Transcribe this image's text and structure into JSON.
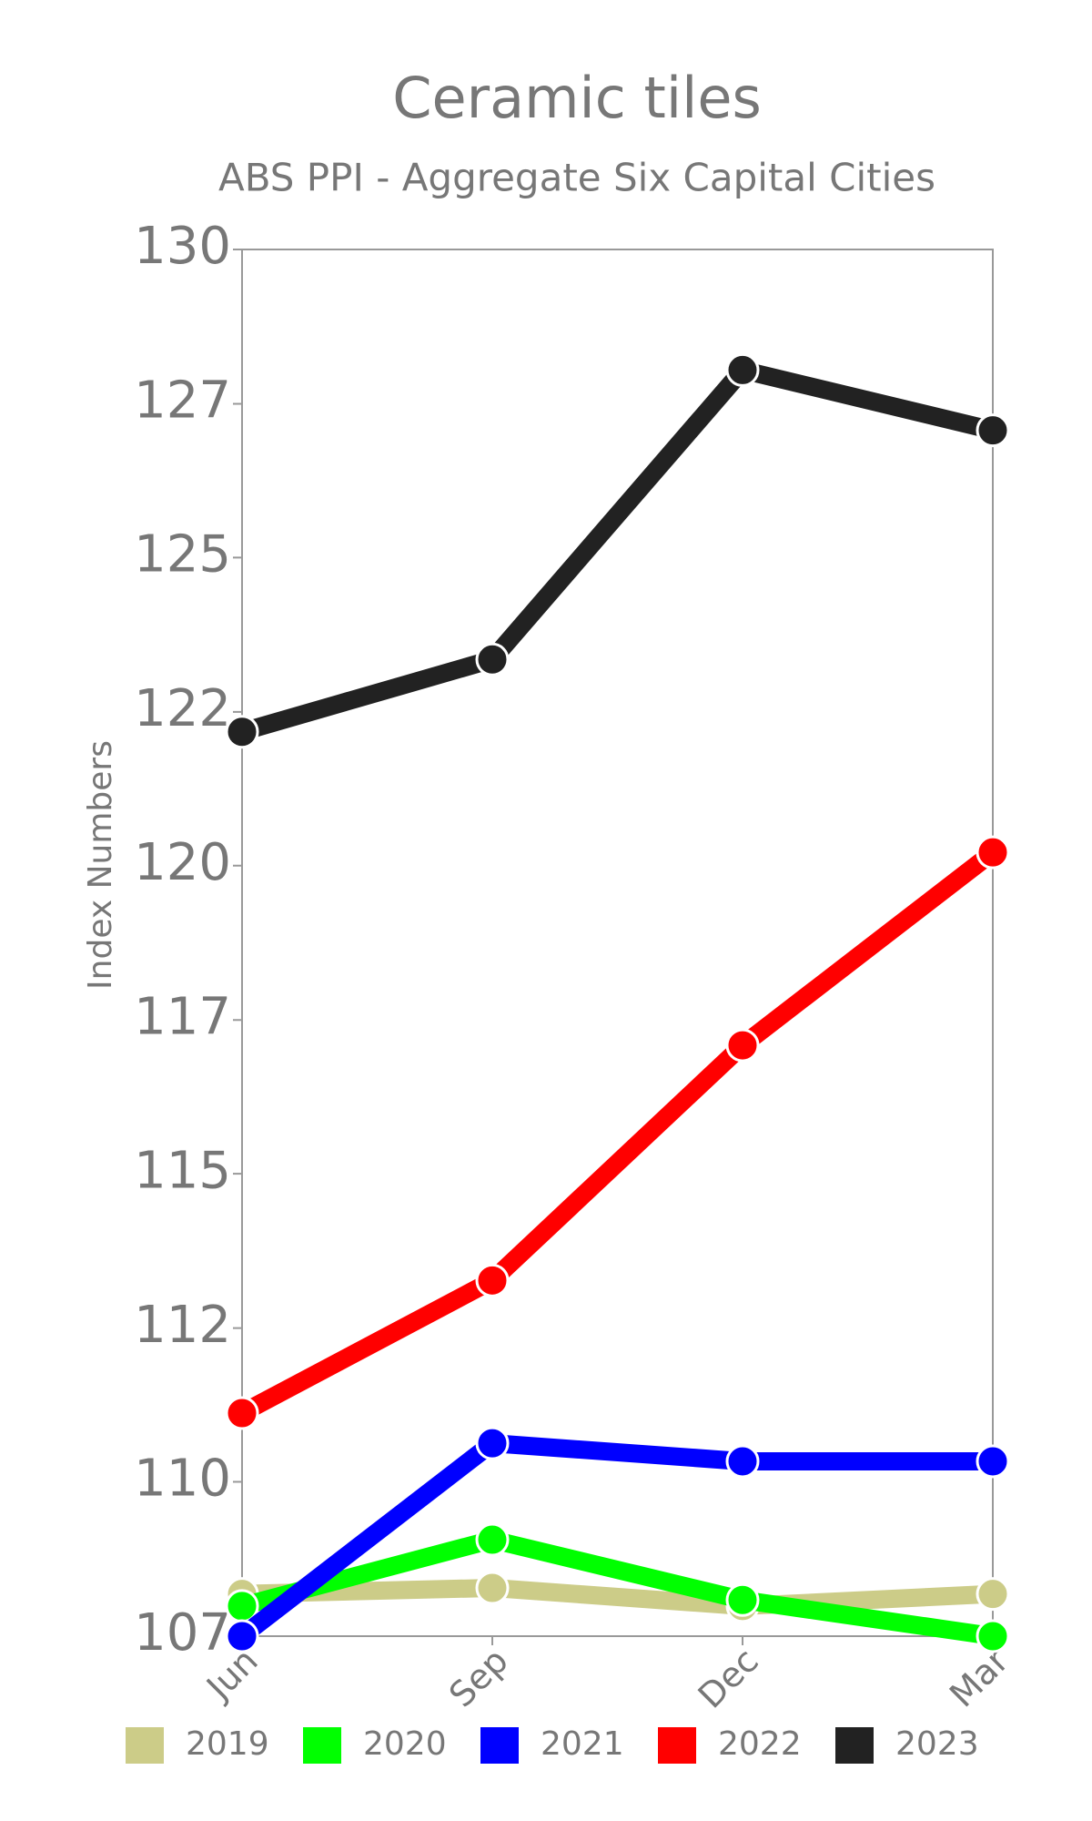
{
  "chart_data": {
    "type": "line",
    "title": "Ceramic tiles",
    "subtitle": "ABS PPI - Aggregate Six Capital Cities",
    "y_label": "Index Numbers",
    "categories": [
      "Jun",
      "Sep",
      "Dec",
      "Mar"
    ],
    "series": [
      {
        "name": "2019",
        "color": "#cccc88",
        "values": [
          107.7,
          107.8,
          107.5,
          107.7
        ]
      },
      {
        "name": "2020",
        "color": "#00ff00",
        "values": [
          107.5,
          108.6,
          107.6,
          107.0
        ]
      },
      {
        "name": "2021",
        "color": "#0000ff",
        "values": [
          107.0,
          110.2,
          109.9,
          109.9
        ]
      },
      {
        "name": "2022",
        "color": "#ff0000",
        "values": [
          110.7,
          112.9,
          116.8,
          120.0
        ]
      },
      {
        "name": "2023",
        "color": "#222222",
        "values": [
          122.0,
          123.2,
          128.0,
          127.0
        ]
      }
    ],
    "ylim": [
      107,
      130
    ],
    "yticks": [
      107,
      {
        "value": 109.56,
        "label": "110"
      },
      {
        "value": 112.11,
        "label": "112"
      },
      {
        "value": 114.67,
        "label": "115"
      },
      {
        "value": 117.22,
        "label": "117"
      },
      {
        "value": 119.78,
        "label": "120"
      },
      {
        "value": 122.33,
        "label": "122"
      },
      {
        "value": 124.89,
        "label": "125"
      },
      {
        "value": 127.44,
        "label": "127"
      },
      130
    ],
    "legend": "bottom"
  }
}
